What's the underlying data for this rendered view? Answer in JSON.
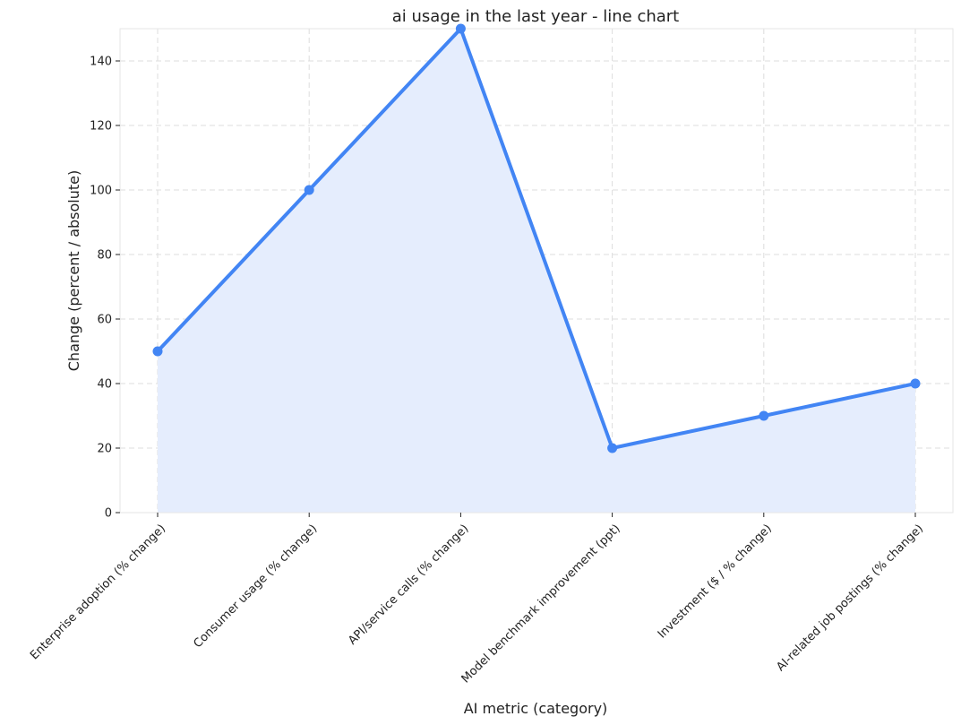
{
  "chart_data": {
    "type": "line",
    "title": "ai usage in the last year - line chart",
    "xlabel": "AI metric (category)",
    "ylabel": "Change (percent / absolute)",
    "categories": [
      "Enterprise adoption (% change)",
      "Consumer usage (% change)",
      "API/service calls (% change)",
      "Model benchmark improvement (ppt)",
      "Investment ($ / % change)",
      "AI-related job postings (% change)"
    ],
    "series": [
      {
        "values": [
          50,
          100,
          150,
          20,
          30,
          40
        ]
      }
    ],
    "ylim": [
      0,
      150
    ],
    "yticks": [
      0,
      20,
      40,
      60,
      80,
      100,
      120,
      140
    ],
    "grid": true,
    "area_fill": true,
    "colors": {
      "line": "#4285f4",
      "fill": "#e5edfd",
      "marker": "#4285f4"
    }
  }
}
